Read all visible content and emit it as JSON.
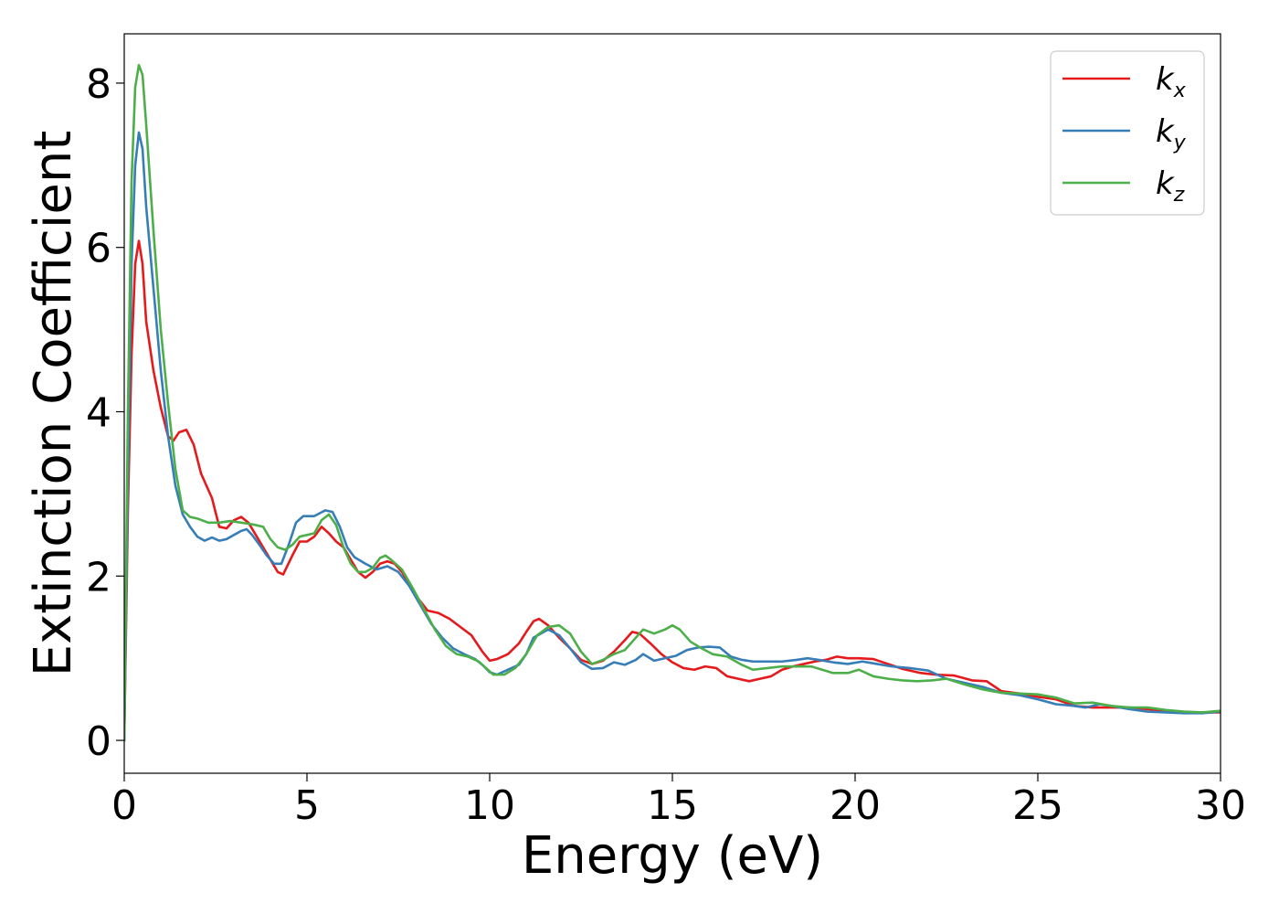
{
  "chart_data": {
    "type": "line",
    "xlabel": "Energy (eV)",
    "ylabel": "Extinction Coefficient",
    "xlim": [
      0,
      30
    ],
    "ylim": [
      -0.4,
      8.6
    ],
    "xticks": [
      0,
      5,
      10,
      15,
      20,
      25,
      30
    ],
    "yticks": [
      0,
      2,
      4,
      6,
      8
    ],
    "grid": false,
    "legend_position": "top-right",
    "series": [
      {
        "name": "k",
        "subscript": "x",
        "color": "#e41a1c",
        "points": [
          [
            0,
            0
          ],
          [
            0.1,
            2.8
          ],
          [
            0.2,
            4.7
          ],
          [
            0.3,
            5.8
          ],
          [
            0.4,
            6.08
          ],
          [
            0.5,
            5.8
          ],
          [
            0.6,
            5.1
          ],
          [
            0.8,
            4.5
          ],
          [
            1.0,
            4.05
          ],
          [
            1.2,
            3.7
          ],
          [
            1.35,
            3.65
          ],
          [
            1.5,
            3.75
          ],
          [
            1.7,
            3.78
          ],
          [
            1.9,
            3.6
          ],
          [
            2.1,
            3.25
          ],
          [
            2.4,
            2.95
          ],
          [
            2.6,
            2.6
          ],
          [
            2.8,
            2.58
          ],
          [
            3.0,
            2.68
          ],
          [
            3.2,
            2.72
          ],
          [
            3.4,
            2.65
          ],
          [
            3.6,
            2.5
          ],
          [
            3.8,
            2.35
          ],
          [
            4.0,
            2.2
          ],
          [
            4.2,
            2.05
          ],
          [
            4.35,
            2.02
          ],
          [
            4.6,
            2.25
          ],
          [
            4.8,
            2.42
          ],
          [
            5.0,
            2.42
          ],
          [
            5.2,
            2.48
          ],
          [
            5.4,
            2.6
          ],
          [
            5.6,
            2.52
          ],
          [
            5.8,
            2.42
          ],
          [
            6.0,
            2.35
          ],
          [
            6.2,
            2.2
          ],
          [
            6.4,
            2.05
          ],
          [
            6.6,
            1.98
          ],
          [
            6.8,
            2.05
          ],
          [
            7.0,
            2.15
          ],
          [
            7.2,
            2.18
          ],
          [
            7.4,
            2.15
          ],
          [
            7.6,
            2.05
          ],
          [
            7.8,
            1.9
          ],
          [
            8.0,
            1.75
          ],
          [
            8.3,
            1.58
          ],
          [
            8.6,
            1.55
          ],
          [
            8.9,
            1.48
          ],
          [
            9.2,
            1.38
          ],
          [
            9.5,
            1.28
          ],
          [
            9.8,
            1.08
          ],
          [
            10.0,
            0.97
          ],
          [
            10.2,
            0.99
          ],
          [
            10.5,
            1.05
          ],
          [
            10.8,
            1.18
          ],
          [
            11.0,
            1.32
          ],
          [
            11.2,
            1.45
          ],
          [
            11.35,
            1.48
          ],
          [
            11.6,
            1.4
          ],
          [
            11.9,
            1.25
          ],
          [
            12.2,
            1.12
          ],
          [
            12.5,
            0.98
          ],
          [
            12.8,
            0.93
          ],
          [
            13.1,
            0.97
          ],
          [
            13.4,
            1.08
          ],
          [
            13.7,
            1.22
          ],
          [
            13.9,
            1.32
          ],
          [
            14.1,
            1.3
          ],
          [
            14.4,
            1.18
          ],
          [
            14.7,
            1.05
          ],
          [
            15.0,
            0.95
          ],
          [
            15.3,
            0.88
          ],
          [
            15.6,
            0.86
          ],
          [
            15.9,
            0.9
          ],
          [
            16.2,
            0.88
          ],
          [
            16.5,
            0.78
          ],
          [
            16.8,
            0.75
          ],
          [
            17.1,
            0.72
          ],
          [
            17.4,
            0.75
          ],
          [
            17.7,
            0.78
          ],
          [
            18.0,
            0.86
          ],
          [
            18.3,
            0.9
          ],
          [
            18.6,
            0.93
          ],
          [
            18.9,
            0.96
          ],
          [
            19.2,
            0.98
          ],
          [
            19.5,
            1.02
          ],
          [
            19.8,
            1.0
          ],
          [
            20.1,
            1.0
          ],
          [
            20.5,
            0.99
          ],
          [
            20.9,
            0.93
          ],
          [
            21.3,
            0.87
          ],
          [
            21.8,
            0.82
          ],
          [
            22.2,
            0.8
          ],
          [
            22.7,
            0.79
          ],
          [
            23.2,
            0.73
          ],
          [
            23.6,
            0.72
          ],
          [
            24.0,
            0.6
          ],
          [
            24.5,
            0.57
          ],
          [
            25.0,
            0.53
          ],
          [
            25.5,
            0.5
          ],
          [
            26.0,
            0.42
          ],
          [
            26.5,
            0.4
          ],
          [
            27.0,
            0.4
          ],
          [
            27.5,
            0.4
          ],
          [
            28.0,
            0.38
          ],
          [
            28.5,
            0.36
          ],
          [
            29.0,
            0.34
          ],
          [
            29.5,
            0.34
          ],
          [
            30.0,
            0.34
          ]
        ]
      },
      {
        "name": "k",
        "subscript": "y",
        "color": "#377eb8",
        "points": [
          [
            0,
            0
          ],
          [
            0.1,
            3.2
          ],
          [
            0.2,
            5.8
          ],
          [
            0.3,
            7.0
          ],
          [
            0.4,
            7.4
          ],
          [
            0.5,
            7.2
          ],
          [
            0.6,
            6.5
          ],
          [
            0.8,
            5.5
          ],
          [
            1.0,
            4.5
          ],
          [
            1.2,
            3.7
          ],
          [
            1.4,
            3.1
          ],
          [
            1.6,
            2.75
          ],
          [
            1.8,
            2.6
          ],
          [
            2.0,
            2.48
          ],
          [
            2.2,
            2.43
          ],
          [
            2.4,
            2.47
          ],
          [
            2.6,
            2.43
          ],
          [
            2.8,
            2.45
          ],
          [
            3.0,
            2.5
          ],
          [
            3.2,
            2.55
          ],
          [
            3.35,
            2.57
          ],
          [
            3.5,
            2.5
          ],
          [
            3.7,
            2.38
          ],
          [
            3.9,
            2.25
          ],
          [
            4.1,
            2.15
          ],
          [
            4.3,
            2.15
          ],
          [
            4.5,
            2.38
          ],
          [
            4.7,
            2.65
          ],
          [
            4.9,
            2.73
          ],
          [
            5.2,
            2.73
          ],
          [
            5.5,
            2.8
          ],
          [
            5.7,
            2.78
          ],
          [
            5.9,
            2.6
          ],
          [
            6.1,
            2.35
          ],
          [
            6.3,
            2.23
          ],
          [
            6.6,
            2.15
          ],
          [
            6.9,
            2.08
          ],
          [
            7.2,
            2.12
          ],
          [
            7.5,
            2.05
          ],
          [
            7.8,
            1.88
          ],
          [
            8.1,
            1.65
          ],
          [
            8.4,
            1.42
          ],
          [
            8.7,
            1.25
          ],
          [
            9.0,
            1.12
          ],
          [
            9.3,
            1.05
          ],
          [
            9.6,
            0.99
          ],
          [
            9.8,
            0.92
          ],
          [
            10.0,
            0.83
          ],
          [
            10.2,
            0.8
          ],
          [
            10.5,
            0.86
          ],
          [
            10.8,
            0.92
          ],
          [
            11.0,
            1.05
          ],
          [
            11.2,
            1.25
          ],
          [
            11.4,
            1.3
          ],
          [
            11.6,
            1.35
          ],
          [
            11.9,
            1.28
          ],
          [
            12.2,
            1.12
          ],
          [
            12.5,
            0.95
          ],
          [
            12.8,
            0.87
          ],
          [
            13.1,
            0.88
          ],
          [
            13.4,
            0.95
          ],
          [
            13.7,
            0.92
          ],
          [
            14.0,
            0.98
          ],
          [
            14.2,
            1.05
          ],
          [
            14.5,
            0.97
          ],
          [
            14.8,
            1.0
          ],
          [
            15.1,
            1.03
          ],
          [
            15.4,
            1.1
          ],
          [
            15.7,
            1.13
          ],
          [
            16.0,
            1.14
          ],
          [
            16.3,
            1.13
          ],
          [
            16.6,
            1.02
          ],
          [
            16.9,
            0.98
          ],
          [
            17.2,
            0.96
          ],
          [
            17.6,
            0.96
          ],
          [
            18.0,
            0.96
          ],
          [
            18.4,
            0.98
          ],
          [
            18.7,
            1.0
          ],
          [
            19.0,
            0.98
          ],
          [
            19.4,
            0.95
          ],
          [
            19.8,
            0.93
          ],
          [
            20.2,
            0.96
          ],
          [
            20.6,
            0.93
          ],
          [
            21.0,
            0.9
          ],
          [
            21.5,
            0.88
          ],
          [
            22.0,
            0.85
          ],
          [
            22.5,
            0.75
          ],
          [
            23.0,
            0.7
          ],
          [
            23.5,
            0.65
          ],
          [
            24.0,
            0.58
          ],
          [
            24.5,
            0.55
          ],
          [
            25.0,
            0.5
          ],
          [
            25.5,
            0.44
          ],
          [
            26.0,
            0.42
          ],
          [
            26.3,
            0.4
          ],
          [
            26.7,
            0.44
          ],
          [
            27.0,
            0.42
          ],
          [
            27.5,
            0.38
          ],
          [
            28.0,
            0.35
          ],
          [
            28.5,
            0.34
          ],
          [
            29.0,
            0.33
          ],
          [
            29.5,
            0.33
          ],
          [
            30.0,
            0.35
          ]
        ]
      },
      {
        "name": "k",
        "subscript": "z",
        "color": "#4daf4a",
        "points": [
          [
            0,
            0
          ],
          [
            0.1,
            4.0
          ],
          [
            0.2,
            6.8
          ],
          [
            0.3,
            7.95
          ],
          [
            0.4,
            8.22
          ],
          [
            0.5,
            8.1
          ],
          [
            0.6,
            7.5
          ],
          [
            0.8,
            6.2
          ],
          [
            1.0,
            5.0
          ],
          [
            1.2,
            4.1
          ],
          [
            1.4,
            3.3
          ],
          [
            1.6,
            2.8
          ],
          [
            1.8,
            2.72
          ],
          [
            2.0,
            2.7
          ],
          [
            2.3,
            2.65
          ],
          [
            2.6,
            2.65
          ],
          [
            2.9,
            2.67
          ],
          [
            3.2,
            2.65
          ],
          [
            3.5,
            2.63
          ],
          [
            3.8,
            2.6
          ],
          [
            4.0,
            2.45
          ],
          [
            4.2,
            2.35
          ],
          [
            4.4,
            2.32
          ],
          [
            4.6,
            2.38
          ],
          [
            4.8,
            2.48
          ],
          [
            5.0,
            2.5
          ],
          [
            5.2,
            2.52
          ],
          [
            5.4,
            2.68
          ],
          [
            5.6,
            2.75
          ],
          [
            5.8,
            2.62
          ],
          [
            6.0,
            2.35
          ],
          [
            6.2,
            2.15
          ],
          [
            6.4,
            2.05
          ],
          [
            6.6,
            2.05
          ],
          [
            6.8,
            2.1
          ],
          [
            7.0,
            2.22
          ],
          [
            7.15,
            2.25
          ],
          [
            7.3,
            2.2
          ],
          [
            7.6,
            2.08
          ],
          [
            7.9,
            1.85
          ],
          [
            8.2,
            1.6
          ],
          [
            8.5,
            1.35
          ],
          [
            8.8,
            1.15
          ],
          [
            9.1,
            1.05
          ],
          [
            9.4,
            1.02
          ],
          [
            9.7,
            0.96
          ],
          [
            9.9,
            0.88
          ],
          [
            10.1,
            0.8
          ],
          [
            10.4,
            0.8
          ],
          [
            10.7,
            0.88
          ],
          [
            11.0,
            1.05
          ],
          [
            11.3,
            1.28
          ],
          [
            11.6,
            1.38
          ],
          [
            11.9,
            1.4
          ],
          [
            12.2,
            1.3
          ],
          [
            12.5,
            1.08
          ],
          [
            12.8,
            0.93
          ],
          [
            13.1,
            0.98
          ],
          [
            13.4,
            1.05
          ],
          [
            13.7,
            1.1
          ],
          [
            14.0,
            1.25
          ],
          [
            14.2,
            1.35
          ],
          [
            14.5,
            1.3
          ],
          [
            14.8,
            1.35
          ],
          [
            15.0,
            1.4
          ],
          [
            15.2,
            1.35
          ],
          [
            15.5,
            1.2
          ],
          [
            15.8,
            1.12
          ],
          [
            16.1,
            1.05
          ],
          [
            16.5,
            1.02
          ],
          [
            16.9,
            0.92
          ],
          [
            17.2,
            0.86
          ],
          [
            17.6,
            0.88
          ],
          [
            18.0,
            0.9
          ],
          [
            18.4,
            0.9
          ],
          [
            18.8,
            0.9
          ],
          [
            19.1,
            0.86
          ],
          [
            19.4,
            0.82
          ],
          [
            19.8,
            0.82
          ],
          [
            20.1,
            0.86
          ],
          [
            20.5,
            0.78
          ],
          [
            20.9,
            0.75
          ],
          [
            21.3,
            0.73
          ],
          [
            21.7,
            0.72
          ],
          [
            22.1,
            0.73
          ],
          [
            22.5,
            0.75
          ],
          [
            23.0,
            0.68
          ],
          [
            23.5,
            0.62
          ],
          [
            24.0,
            0.58
          ],
          [
            24.5,
            0.57
          ],
          [
            25.0,
            0.56
          ],
          [
            25.5,
            0.52
          ],
          [
            26.0,
            0.45
          ],
          [
            26.5,
            0.46
          ],
          [
            27.0,
            0.42
          ],
          [
            27.5,
            0.4
          ],
          [
            28.0,
            0.4
          ],
          [
            28.5,
            0.37
          ],
          [
            29.0,
            0.35
          ],
          [
            29.5,
            0.34
          ],
          [
            30.0,
            0.36
          ]
        ]
      }
    ]
  }
}
